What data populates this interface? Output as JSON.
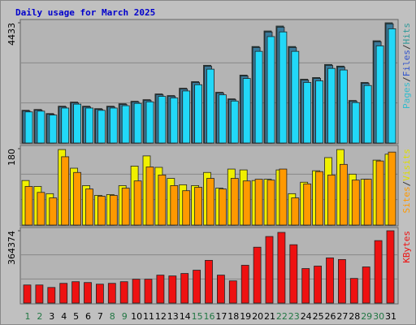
{
  "chart_data": {
    "type": "bar",
    "title": "Daily usage for March 2025",
    "categories": [
      "1",
      "2",
      "3",
      "4",
      "5",
      "6",
      "7",
      "8",
      "9",
      "10",
      "11",
      "12",
      "13",
      "14",
      "15",
      "16",
      "17",
      "18",
      "19",
      "20",
      "21",
      "22",
      "23",
      "24",
      "25",
      "26",
      "27",
      "28",
      "29",
      "30",
      "31"
    ],
    "category_colors": [
      "#227744",
      "#227744",
      "#000000",
      "#000000",
      "#000000",
      "#000000",
      "#000000",
      "#227744",
      "#227744",
      "#000000",
      "#000000",
      "#000000",
      "#000000",
      "#000000",
      "#227744",
      "#227744",
      "#000000",
      "#000000",
      "#000000",
      "#000000",
      "#000000",
      "#227744",
      "#227744",
      "#000000",
      "#000000",
      "#000000",
      "#000000",
      "#000000",
      "#227744",
      "#227744",
      "#000000"
    ],
    "legend_separator": "/",
    "panels": [
      {
        "ylim": [
          0,
          4433
        ],
        "yticks": [
          4433
        ],
        "series": [
          {
            "name": "Hits",
            "color": "#2f5f5f",
            "legend_color": "#339999",
            "values": [
              1206,
              1236,
              1086,
              1357,
              1508,
              1357,
              1267,
              1357,
              1448,
              1538,
              1598,
              1809,
              1749,
              2020,
              2262,
              2865,
              1870,
              1628,
              2503,
              3558,
              4131,
              4312,
              3558,
              2352,
              2413,
              2895,
              2835,
              1568,
              2232,
              3770,
              4433
            ]
          },
          {
            "name": "Files",
            "color": "#3a7a9a",
            "legend_color": "#3355cc",
            "values": [
              1180,
              1210,
              1060,
              1330,
              1480,
              1330,
              1240,
              1330,
              1420,
              1510,
              1570,
              1780,
              1720,
              1990,
              2230,
              2830,
              1840,
              1600,
              2470,
              3520,
              4090,
              4270,
              3520,
              2320,
              2380,
              2860,
              2800,
              1540,
              2200,
              3730,
              4390
            ]
          },
          {
            "name": "Pages",
            "color": "#22d8f8",
            "legend_color": "#33bbcc",
            "values": [
              1146,
              1174,
              1032,
              1289,
              1433,
              1289,
              1204,
              1289,
              1376,
              1461,
              1518,
              1719,
              1662,
              1919,
              2149,
              2722,
              1777,
              1547,
              2378,
              3380,
              3924,
              4096,
              3380,
              2234,
              2292,
              2750,
              2693,
              1490,
              2120,
              3582,
              4211
            ]
          }
        ]
      },
      {
        "ylim": [
          0,
          180
        ],
        "yticks": [
          180
        ],
        "series": [
          {
            "name": "Visits",
            "color": "#f0f000",
            "legend_color": "#dddd00",
            "values": [
              105,
              91,
              74,
              178,
              134,
              93,
              70,
              72,
              93,
              139,
              163,
              136,
              110,
              95,
              93,
              124,
              87,
              132,
              130,
              105,
              108,
              130,
              74,
              101,
              128,
              159,
              178,
              120,
              108,
              153,
              167
            ]
          },
          {
            "name": "Sites",
            "color": "#ff9900",
            "legend_color": "#ff9900",
            "values": [
              91,
              77,
              64,
              161,
              124,
              85,
              68,
              70,
              87,
              104,
              137,
              118,
              93,
              81,
              89,
              110,
              85,
              110,
              104,
              108,
              106,
              132,
              64,
              97,
              126,
              118,
              143,
              106,
              108,
              151,
              172
            ]
          }
        ]
      },
      {
        "ylim": [
          0,
          364374
        ],
        "yticks": [
          364374
        ],
        "series": [
          {
            "name": "KBytes",
            "color": "#ee1111",
            "legend_color": "#ee1111",
            "values": [
              91100,
              91100,
              78680,
              99380,
              107660,
              103520,
              95240,
              99380,
              107660,
              120090,
              120090,
              140790,
              136650,
              149070,
              165630,
              215320,
              140790,
              111800,
              190480,
              281570,
              335400,
              356100,
              294000,
              173910,
              186340,
              227740,
              219460,
              124220,
              182190,
              314700,
              364374
            ]
          }
        ]
      }
    ]
  }
}
